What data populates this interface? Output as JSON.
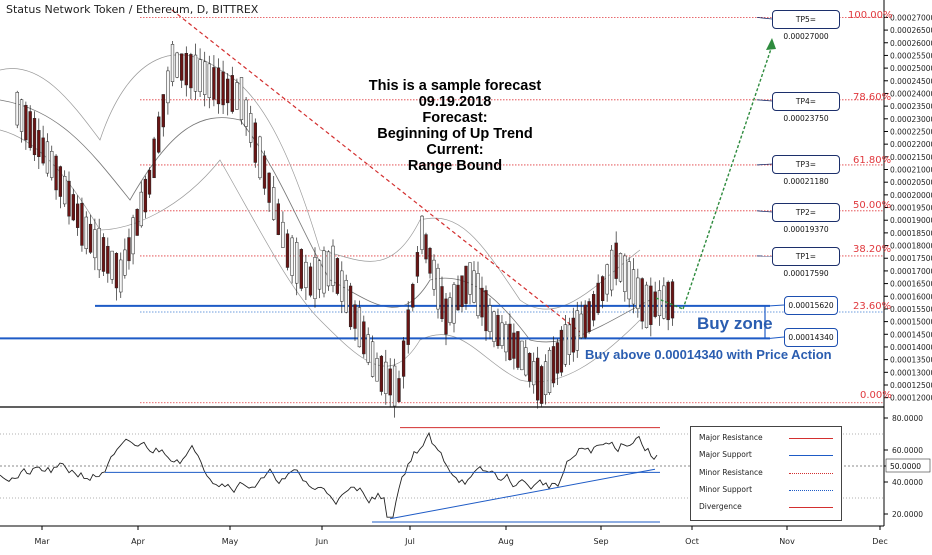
{
  "header": {
    "title": "Status Network Token / Ethereum, D, BITTREX"
  },
  "forecast_note": [
    "This is a sample forecast",
    "09.19.2018",
    "Forecast:",
    "Beginning of Up Trend",
    "Current:",
    "Range Bound"
  ],
  "annotations": {
    "buy_zone": "Buy zone",
    "buy_above": "Buy above 0.00014340 with Price Action",
    "zone_top": "0.00015620",
    "zone_bottom": "0.00014340"
  },
  "targets": [
    {
      "label": "TP5= 0.00027000",
      "value": 0.00027,
      "fib": "100.00%"
    },
    {
      "label": "TP4= 0.00023750",
      "value": 0.0002375,
      "fib": "78.60%"
    },
    {
      "label": "TP3= 0.00021180",
      "value": 0.0002118,
      "fib": "61.80%"
    },
    {
      "label": "TP2= 0.00019370",
      "value": 0.0001937,
      "fib": "50.00%"
    },
    {
      "label": "TP1= 0.00017590",
      "value": 0.0001759,
      "fib": "38.20%"
    }
  ],
  "legend": [
    {
      "label": "Major Resistance",
      "color": "#d32f2f",
      "style": "solid"
    },
    {
      "label": "Major Support",
      "color": "#1e5bc6",
      "style": "solid"
    },
    {
      "label": "Minor Resistance",
      "color": "#d32f2f",
      "style": "dotted"
    },
    {
      "label": "Minor Support",
      "color": "#1e5bc6",
      "style": "dotted"
    },
    {
      "label": "Divergence",
      "color": "#d32f2f",
      "style": "solid"
    }
  ],
  "chart_data": [
    {
      "type": "candlestick",
      "title": "Status Network Token / Ethereum, D, BITTREX",
      "x_ticks": [
        "Mar",
        "Apr",
        "May",
        "Jun",
        "Jul",
        "Aug",
        "Sep",
        "Oct",
        "Nov",
        "Dec"
      ],
      "y_ticks": [
        "0.00012000",
        "0.00012500",
        "0.00013000",
        "0.00013500",
        "0.00014000",
        "0.00014500",
        "0.00015000",
        "0.00015500",
        "0.00016000",
        "0.00016500",
        "0.00017000",
        "0.00017500",
        "0.00018000",
        "0.00018500",
        "0.00019000",
        "0.00019500",
        "0.00020000",
        "0.00020500",
        "0.00021000",
        "0.00021500",
        "0.00022000",
        "0.00022500",
        "0.00023000",
        "0.00023500",
        "0.00024000",
        "0.00024500",
        "0.00025000",
        "0.00025500",
        "0.00026000",
        "0.00026500",
        "0.00027000"
      ],
      "ylim": [
        0.0001175,
        0.0002745
      ],
      "fib_levels": [
        {
          "label": "100.00%",
          "value": 0.00027
        },
        {
          "label": "78.60%",
          "value": 0.0002375
        },
        {
          "label": "61.80%",
          "value": 0.0002118
        },
        {
          "label": "50.00%",
          "value": 0.0001937
        },
        {
          "label": "38.20%",
          "value": 0.0001759
        },
        {
          "label": "23.60%",
          "value": 0.0001538
        },
        {
          "label": "0.00%",
          "value": 0.000118
        }
      ],
      "buy_zone": [
        0.0001434,
        0.0001562
      ],
      "close_path": [
        [
          "Mar",
          0.000234
        ],
        [
          "Mar",
          0.000212
        ],
        [
          "Mar",
          0.000185
        ],
        [
          "Mar",
          0.000168
        ],
        [
          "Apr",
          0.000205
        ],
        [
          "Apr",
          0.000252
        ],
        [
          "Apr",
          0.000248
        ],
        [
          "Apr",
          0.000243
        ],
        [
          "May",
          0.000238
        ],
        [
          "May",
          0.000209
        ],
        [
          "May",
          0.000178
        ],
        [
          "May",
          0.000166
        ],
        [
          "Jun",
          0.000172
        ],
        [
          "Jun",
          0.000152
        ],
        [
          "Jun",
          0.000131
        ],
        [
          "Jun",
          0.000123
        ],
        [
          "Jul",
          0.000185
        ],
        [
          "Jul",
          0.000152
        ],
        [
          "Jul",
          0.000167
        ],
        [
          "Jul",
          0.000148
        ],
        [
          "Aug",
          0.000139
        ],
        [
          "Aug",
          0.000125
        ],
        [
          "Aug",
          0.000141
        ],
        [
          "Aug",
          0.000152
        ],
        [
          "Sep",
          0.000174
        ],
        [
          "Sep",
          0.000156
        ],
        [
          "Sep",
          0.000159
        ]
      ]
    },
    {
      "type": "line",
      "title": "",
      "y_ticks": [
        "20.0000",
        "40.0000",
        "50.0000",
        "60.0000",
        "80.0000"
      ],
      "ylim": [
        15,
        85
      ],
      "current_value": "50.0000",
      "major_resistance": 74,
      "major_support_y": 15
    }
  ]
}
